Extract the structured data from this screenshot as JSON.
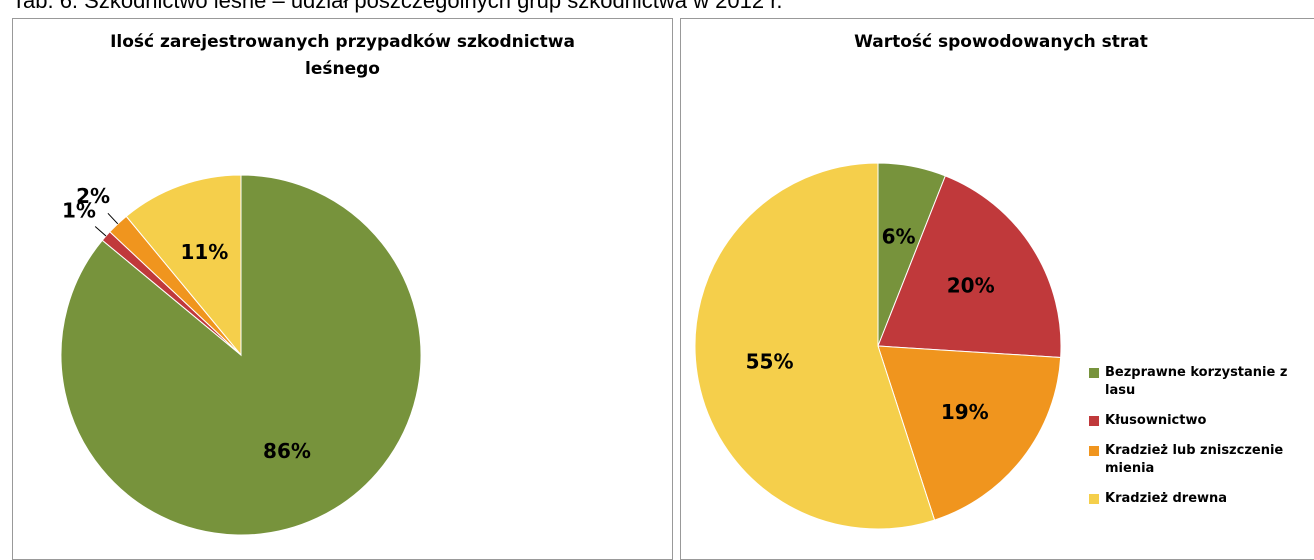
{
  "caption": "Tab. 6. Szkodnictwo leśne – udział poszczególnych grup szkodnictwa w 2012 r.",
  "chart_data": [
    {
      "type": "pie",
      "title": "Ilość zarejestrowanych przypadków szkodnictwa leśnego",
      "values": [
        86,
        1,
        2,
        11
      ],
      "value_labels": [
        "86%",
        "1%",
        "2%",
        "11%"
      ],
      "colors": [
        "#77933c",
        "#c0393b",
        "#f0951e",
        "#f5cf4b"
      ],
      "legend": false
    },
    {
      "type": "pie",
      "title": "Wartość spowodowanych strat",
      "categories": [
        "Bezprawne korzystanie z lasu",
        "Kłusownictwo",
        "Kradzież lub zniszczenie mienia",
        "Kradzież drewna"
      ],
      "values": [
        6,
        20,
        19,
        55
      ],
      "value_labels": [
        "6%",
        "20%",
        "19%",
        "55%"
      ],
      "colors": [
        "#77933c",
        "#c0393b",
        "#f0951e",
        "#f5cf4b"
      ],
      "legend": true,
      "legend_position": "right"
    }
  ]
}
